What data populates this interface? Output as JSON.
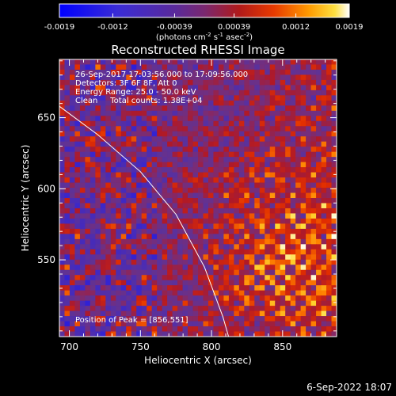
{
  "colorbar": {
    "ticks": [
      "-0.0019",
      "-0.0012",
      "-0.00039",
      "0.00039",
      "0.0012",
      "0.0019"
    ],
    "tick_values": [
      -0.0019,
      -0.0012,
      -0.00039,
      0.00039,
      0.0012,
      0.0019
    ],
    "range": [
      -0.0019,
      0.0019
    ],
    "unit_base": "(photons cm",
    "unit_sup1": "-2",
    "unit_mid1": " s",
    "unit_sup2": "-1",
    "unit_mid2": " asec",
    "unit_sup3": "-2",
    "unit_end": ")"
  },
  "chart_data": {
    "type": "heatmap",
    "title": "Reconstructed RHESSI Image",
    "xlabel": "Heliocentric X (arcsec)",
    "ylabel": "Heliocentric Y (arcsec)",
    "xlim": [
      693,
      888
    ],
    "ylim": [
      496,
      691
    ],
    "xticks": [
      700,
      750,
      800,
      850
    ],
    "yticks": [
      550,
      600,
      650
    ],
    "annotations": [
      "26-Sep-2017 17:03:56.000 to 17:09:56.000",
      "Detectors: 3F 6F 8F, Att 0",
      "Energy Range: 25.0 - 50.0 keV",
      "Clean     Total counts: 1.38E+04"
    ],
    "peak_label": "Position of Peak = [856,551]",
    "peak": [
      856,
      551
    ],
    "limb_curve": [
      [
        693,
        658
      ],
      [
        720,
        638
      ],
      [
        750,
        612
      ],
      [
        775,
        582
      ],
      [
        795,
        545
      ],
      [
        808,
        510
      ],
      [
        812,
        496
      ]
    ],
    "grid": false
  },
  "footer": {
    "date": "6-Sep-2022 18:07"
  },
  "colors": {
    "background": "#000000",
    "text": "#ffffff",
    "limb": "#ffffff"
  }
}
